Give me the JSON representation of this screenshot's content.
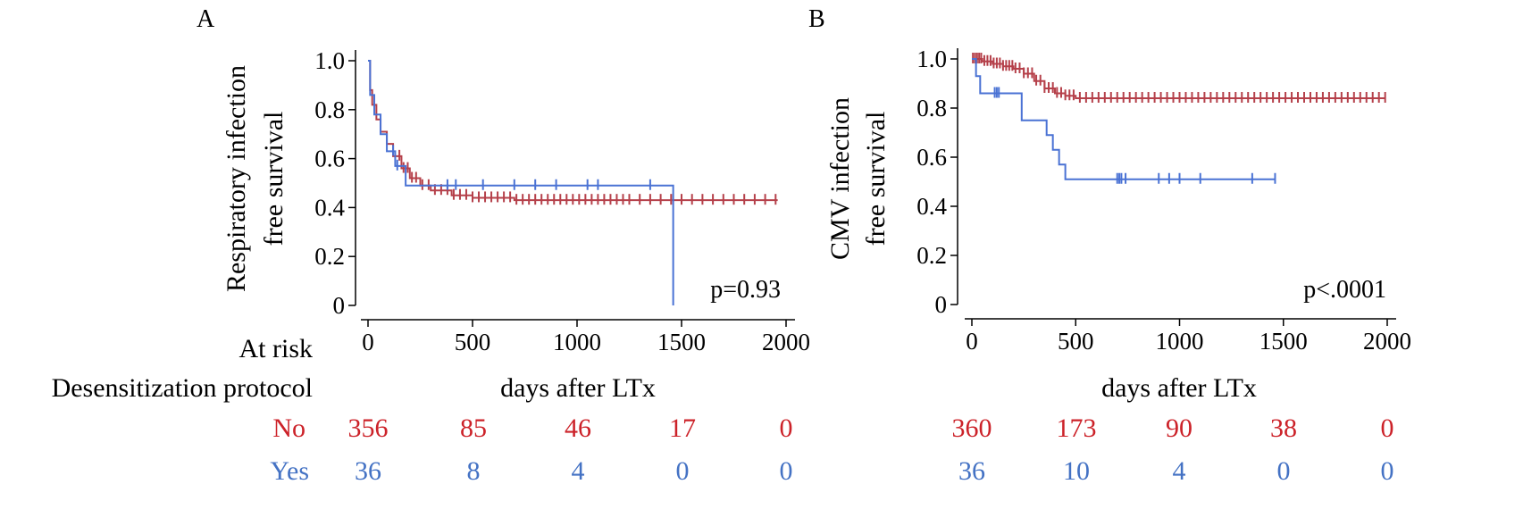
{
  "panels": [
    {
      "letter": "A",
      "ylabel_line1": "Respiratory infection",
      "ylabel_line2": "free survival",
      "xlabel": "days after LTx",
      "pvalue": "p=0.93"
    },
    {
      "letter": "B",
      "ylabel_line1": "CMV infection",
      "ylabel_line2": "free survival",
      "xlabel": "days after LTx",
      "pvalue": "p<.0001"
    }
  ],
  "risk_table": {
    "at_risk_label": "At risk",
    "protocol_label": "Desensitization protocol",
    "rows": [
      {
        "label": "No",
        "color": "#cc2229",
        "panelA": [
          "356",
          "85",
          "46",
          "17",
          "0"
        ],
        "panelB": [
          "360",
          "173",
          "90",
          "38",
          "0"
        ]
      },
      {
        "label": "Yes",
        "color": "#4472c4",
        "panelA": [
          "36",
          "8",
          "4",
          "0",
          "0"
        ],
        "panelB": [
          "36",
          "10",
          "4",
          "0",
          "0"
        ]
      }
    ]
  },
  "chart_data": [
    {
      "type": "line",
      "subtype": "kaplan-meier",
      "xlabel": "days after LTx",
      "ylabel": "Respiratory infection free survival",
      "xlim": [
        0,
        2000
      ],
      "ylim": [
        0,
        1.0
      ],
      "xticks": [
        0,
        500,
        1000,
        1500,
        2000
      ],
      "yticks": [
        0,
        0.2,
        0.4,
        0.6,
        0.8,
        1.0
      ],
      "ytick_labels": [
        "0",
        "0.2",
        "0.4",
        "0.6",
        "0.8",
        "1.0"
      ],
      "grid": false,
      "annotation": "p=0.93",
      "series": [
        {
          "color": "#b5404a",
          "x": [
            0,
            10,
            20,
            40,
            60,
            90,
            120,
            160,
            200,
            250,
            300,
            400,
            500,
            700,
            1000,
            1500,
            1960
          ],
          "y": [
            1.0,
            0.88,
            0.82,
            0.76,
            0.71,
            0.66,
            0.61,
            0.56,
            0.52,
            0.49,
            0.47,
            0.45,
            0.44,
            0.43,
            0.43,
            0.43,
            0.43
          ],
          "censor_x": [
            150,
            170,
            190,
            210,
            230,
            260,
            290,
            320,
            350,
            380,
            410,
            440,
            470,
            500,
            530,
            560,
            590,
            620,
            650,
            680,
            710,
            740,
            770,
            800,
            830,
            860,
            890,
            920,
            950,
            980,
            1010,
            1040,
            1070,
            1100,
            1130,
            1160,
            1190,
            1220,
            1250,
            1300,
            1350,
            1400,
            1450,
            1500,
            1550,
            1600,
            1650,
            1700,
            1750,
            1800,
            1850,
            1900,
            1950
          ]
        },
        {
          "color": "#4a72d4",
          "x": [
            0,
            10,
            30,
            60,
            90,
            130,
            180,
            1450,
            1460
          ],
          "y": [
            1.0,
            0.86,
            0.78,
            0.7,
            0.63,
            0.57,
            0.49,
            0.49,
            0.0
          ],
          "censor_x": [
            120,
            140,
            380,
            420,
            550,
            700,
            800,
            900,
            1050,
            1100,
            1350
          ]
        }
      ]
    },
    {
      "type": "line",
      "subtype": "kaplan-meier",
      "xlabel": "days after LTx",
      "ylabel": "CMV infection free survival",
      "xlim": [
        0,
        2000
      ],
      "ylim": [
        0,
        1.0
      ],
      "xticks": [
        0,
        500,
        1000,
        1500,
        2000
      ],
      "yticks": [
        0,
        0.2,
        0.4,
        0.6,
        0.8,
        1.0
      ],
      "ytick_labels": [
        "0",
        "0.2",
        "0.4",
        "0.6",
        "0.8",
        "1.0"
      ],
      "grid": false,
      "annotation": "p<.0001",
      "series": [
        {
          "color": "#b5404a",
          "x": [
            0,
            50,
            100,
            150,
            200,
            250,
            300,
            350,
            400,
            450,
            500,
            1990
          ],
          "y": [
            1.0,
            0.99,
            0.98,
            0.97,
            0.96,
            0.94,
            0.91,
            0.88,
            0.86,
            0.85,
            0.84,
            0.84
          ],
          "censor_x": [
            5,
            15,
            25,
            35,
            45,
            60,
            75,
            90,
            105,
            120,
            135,
            150,
            165,
            180,
            195,
            210,
            230,
            250,
            270,
            290,
            310,
            330,
            350,
            370,
            390,
            410,
            430,
            450,
            470,
            490,
            520,
            550,
            580,
            610,
            640,
            670,
            700,
            730,
            760,
            790,
            820,
            850,
            880,
            910,
            940,
            970,
            1000,
            1030,
            1060,
            1090,
            1120,
            1150,
            1180,
            1210,
            1240,
            1270,
            1300,
            1330,
            1360,
            1390,
            1420,
            1450,
            1480,
            1510,
            1540,
            1570,
            1600,
            1630,
            1660,
            1690,
            1720,
            1750,
            1780,
            1810,
            1840,
            1870,
            1900,
            1930,
            1960,
            1990
          ]
        },
        {
          "color": "#4a72d4",
          "x": [
            0,
            20,
            40,
            200,
            240,
            340,
            360,
            390,
            420,
            450,
            1460
          ],
          "y": [
            1.0,
            0.93,
            0.86,
            0.86,
            0.75,
            0.75,
            0.69,
            0.63,
            0.57,
            0.51,
            0.51
          ],
          "censor_x": [
            110,
            120,
            130,
            700,
            710,
            720,
            740,
            900,
            950,
            1000,
            1100,
            1350,
            1460
          ]
        }
      ]
    }
  ]
}
